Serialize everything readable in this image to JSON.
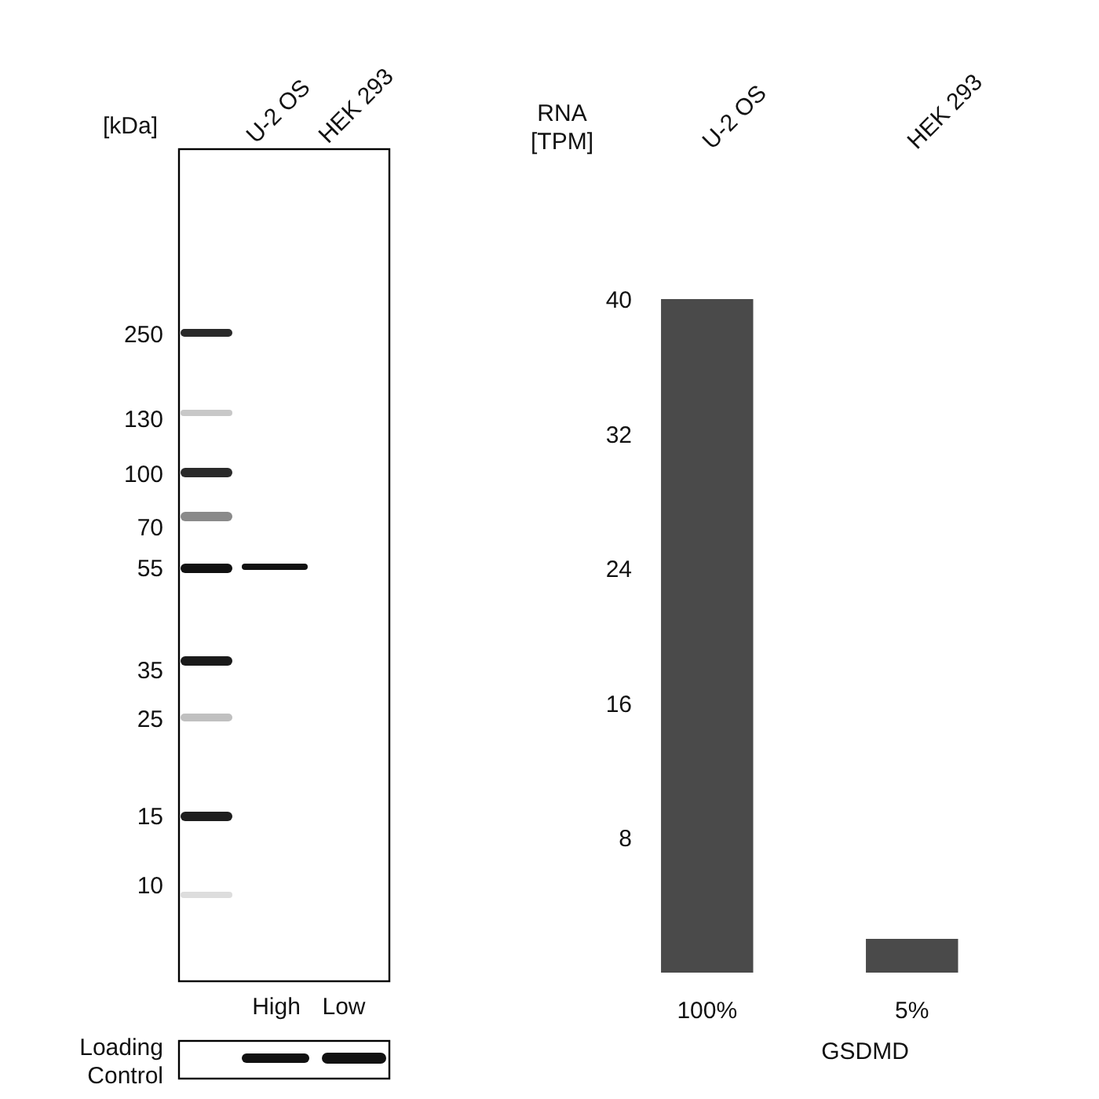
{
  "chart_data": {
    "type": "bar",
    "categories": [
      "U-2 OS",
      "HEK 293"
    ],
    "values": [
      40,
      2
    ],
    "color": "#4a4a4a",
    "ylim": [
      0,
      40
    ],
    "yticks": [
      8,
      16,
      24,
      32,
      40
    ],
    "ylabel": "RNA [TPM]",
    "xlabel": "GSDMD",
    "annotations": [
      "[kDa]",
      "250",
      "130",
      "100",
      "70",
      "55",
      "35",
      "25",
      "15",
      "10",
      "U-2 OS",
      "HEK 293",
      "High",
      "Low",
      "Loading Control",
      "100%",
      "5%"
    ]
  }
}
